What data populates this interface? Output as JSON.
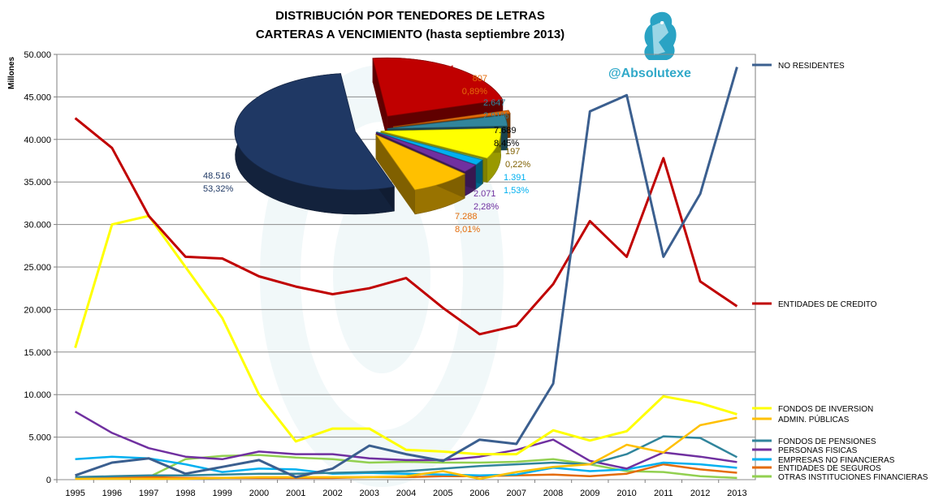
{
  "chart_data": {
    "type": "line",
    "title_line1": "DISTRIBUCIÓN POR TENEDORES DE LETRAS",
    "title_line2": "CARTERAS A VENCIMIENTO (hasta septiembre 2013)",
    "ylabel": "Millones",
    "ylim": [
      0,
      50000
    ],
    "yticks": [
      "0",
      "5.000",
      "10.000",
      "15.000",
      "20.000",
      "25.000",
      "30.000",
      "35.000",
      "40.000",
      "45.000",
      "50.000"
    ],
    "categories": [
      "1995",
      "1996",
      "1997",
      "1998",
      "1999",
      "2000",
      "2001",
      "2002",
      "2003",
      "2004",
      "2005",
      "2006",
      "2007",
      "2008",
      "2009",
      "2010",
      "2011",
      "2012",
      "2013"
    ],
    "series": [
      {
        "name": "NO RESIDENTES",
        "color": "#3b5f8f",
        "values": [
          500,
          2000,
          2500,
          700,
          1500,
          2300,
          300,
          1300,
          4000,
          3000,
          2200,
          4700,
          4200,
          11300,
          43300,
          45200,
          26200,
          33600,
          48516
        ]
      },
      {
        "name": "ENTIDADES  DE CREDITO",
        "color": "#c00000",
        "values": [
          42500,
          39000,
          31000,
          26200,
          26000,
          23900,
          22700,
          21800,
          22500,
          23700,
          20200,
          17100,
          18100,
          23000,
          30400,
          26200,
          37800,
          23300,
          20381
        ]
      },
      {
        "name": "FONDOS DE INVERSION",
        "color": "#ffff00",
        "values": [
          15500,
          30000,
          31000,
          25000,
          19000,
          10000,
          4500,
          6000,
          6000,
          3500,
          3300,
          3000,
          3000,
          5800,
          4600,
          5700,
          9800,
          9000,
          7689
        ]
      },
      {
        "name": "ADMIN. PÚBLICAS",
        "color": "#ffc000",
        "values": [
          100,
          100,
          100,
          100,
          200,
          300,
          300,
          300,
          300,
          400,
          1000,
          100,
          900,
          1500,
          1800,
          4100,
          3200,
          6400,
          7288
        ]
      },
      {
        "name": "FONDOS DE PENSIONES",
        "color": "#31859c",
        "values": [
          300,
          400,
          500,
          500,
          600,
          700,
          700,
          800,
          900,
          1000,
          1300,
          1600,
          1800,
          2000,
          1800,
          3000,
          5100,
          4900,
          2647
        ]
      },
      {
        "name": "PERSONAS FISICAS",
        "color": "#7030a0",
        "values": [
          8000,
          5500,
          3700,
          2700,
          2400,
          3300,
          3000,
          3000,
          2500,
          2300,
          2300,
          2700,
          3500,
          4700,
          2200,
          1300,
          3200,
          2700,
          2071
        ]
      },
      {
        "name": "EMPRESAS  NO FINANCIERAS",
        "color": "#00b0f0",
        "values": [
          2400,
          2700,
          2500,
          1800,
          900,
          1300,
          1200,
          700,
          800,
          700,
          600,
          500,
          600,
          1400,
          1000,
          1200,
          2000,
          1800,
          1391
        ]
      },
      {
        "name": "ENTIDADES  DE SEGUROS",
        "color": "#e46c0a",
        "values": [
          200,
          300,
          300,
          200,
          200,
          200,
          200,
          200,
          300,
          300,
          400,
          400,
          500,
          600,
          400,
          700,
          1800,
          1200,
          807
        ]
      },
      {
        "name": "OTRAS INSTITUCIONES  FINANCIERAS",
        "color": "#92d050",
        "values": [
          200,
          200,
          300,
          2400,
          2800,
          2900,
          2600,
          2400,
          2000,
          2100,
          2000,
          2000,
          2100,
          2400,
          1800,
          1000,
          900,
          400,
          197
        ]
      }
    ],
    "pie": [
      {
        "value": "48.516",
        "pct": "53,32%",
        "color": "#1f3864"
      },
      {
        "value": "20.381",
        "pct": "22,40%",
        "color": "#c00000"
      },
      {
        "value": "807",
        "pct": "0,89%",
        "color": "#e46c0a"
      },
      {
        "value": "2.647",
        "pct": "2,91%",
        "color": "#31859c"
      },
      {
        "value": "7.689",
        "pct": "8,45%",
        "color": "#ffff00"
      },
      {
        "value": "197",
        "pct": "0,22%",
        "color": "#92d050"
      },
      {
        "value": "1.391",
        "pct": "1,53%",
        "color": "#00b0f0"
      },
      {
        "value": "2.071",
        "pct": "2,28%",
        "color": "#7030a0"
      },
      {
        "value": "7.288",
        "pct": "8,01%",
        "color": "#ffc000"
      }
    ]
  },
  "watermark": {
    "handle": "@Absolutexe",
    "logo_icon": "griffin-icon"
  }
}
